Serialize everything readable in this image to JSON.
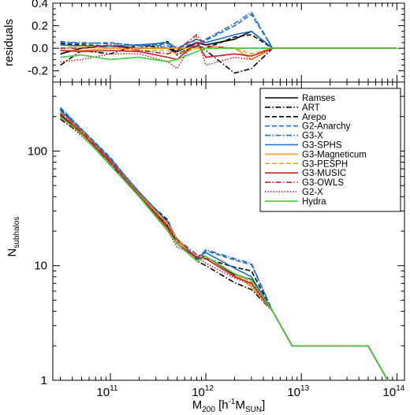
{
  "chart_data": [
    {
      "panel": "residuals",
      "type": "line",
      "ylabel": "residuals",
      "xscale": "log",
      "xlim": [
        25000000000.0,
        120000000000000.0
      ],
      "ylim": [
        -0.3,
        0.4
      ],
      "yticks": [
        -0.2,
        0.0,
        0.2,
        0.4
      ],
      "ytick_labels": [
        "-0.2",
        "0.0",
        "0.2",
        "0.4"
      ],
      "reference_line": 0,
      "x": [
        30000000000.0,
        50000000000.0,
        100000000000.0,
        200000000000.0,
        400000000000.0,
        500000000000.0,
        800000000000.0,
        1000000000000.0,
        2000000000000.0,
        3000000000000.0,
        5000000000000.0,
        10000000000000.0,
        100000000000000.0
      ],
      "series": [
        {
          "name": "Ramses",
          "values": [
            -0.05,
            0.0,
            0.02,
            0.0,
            0.0,
            -0.03,
            0.05,
            0.03,
            0.08,
            0.15,
            0.0,
            0.0,
            0.0
          ]
        },
        {
          "name": "ART",
          "values": [
            -0.15,
            -0.02,
            -0.05,
            0.03,
            0.0,
            -0.05,
            0.02,
            -0.02,
            -0.22,
            -0.18,
            0.0,
            0.0,
            0.0
          ]
        },
        {
          "name": "Arepo",
          "values": [
            0.04,
            0.03,
            0.02,
            0.0,
            0.06,
            -0.06,
            0.02,
            0.0,
            0.1,
            0.12,
            0.0,
            0.0,
            0.0
          ]
        },
        {
          "name": "G2-Anarchy",
          "values": [
            0.06,
            0.04,
            0.05,
            0.02,
            0.04,
            0.0,
            0.05,
            0.07,
            0.2,
            0.3,
            0.0,
            0.0,
            0.0
          ]
        },
        {
          "name": "G3-X",
          "values": [
            0.05,
            0.05,
            0.04,
            0.03,
            0.02,
            -0.02,
            0.02,
            0.08,
            0.22,
            0.32,
            0.0,
            0.0,
            0.0
          ]
        },
        {
          "name": "G3-SPHS",
          "values": [
            0.03,
            0.02,
            0.02,
            0.03,
            0.05,
            0.0,
            0.08,
            0.05,
            0.12,
            0.15,
            0.0,
            0.0,
            0.0
          ]
        },
        {
          "name": "G3-Magneticum",
          "values": [
            -0.02,
            -0.02,
            0.0,
            0.0,
            0.0,
            0.0,
            0.0,
            0.0,
            0.0,
            -0.1,
            0.0,
            0.0,
            0.0
          ]
        },
        {
          "name": "G3-PESPH",
          "values": [
            0.0,
            0.02,
            0.0,
            -0.02,
            -0.02,
            -0.05,
            0.0,
            0.0,
            0.0,
            -0.05,
            0.0,
            0.0,
            0.0
          ]
        },
        {
          "name": "G3-MUSIC",
          "values": [
            -0.02,
            -0.03,
            -0.02,
            -0.03,
            -0.08,
            -0.1,
            0.05,
            -0.08,
            -0.05,
            -0.07,
            0.0,
            0.0,
            0.0
          ]
        },
        {
          "name": "G3-OWLS",
          "values": [
            0.0,
            0.0,
            0.03,
            -0.02,
            -0.05,
            -0.02,
            0.12,
            0.02,
            0.0,
            0.0,
            0.0,
            0.0,
            0.0
          ]
        },
        {
          "name": "G2-X",
          "values": [
            -0.12,
            -0.1,
            -0.05,
            -0.05,
            -0.12,
            -0.18,
            0.1,
            -0.15,
            -0.08,
            -0.1,
            0.0,
            0.0,
            0.0
          ]
        },
        {
          "name": "Hydra",
          "values": [
            -0.08,
            -0.06,
            -0.1,
            -0.08,
            -0.12,
            -0.1,
            -0.03,
            0.0,
            0.0,
            0.0,
            0.0,
            0.0,
            0.0
          ]
        }
      ]
    },
    {
      "panel": "main",
      "type": "line",
      "xlabel": "M",
      "xlabel_sub": "200",
      "xlabel_units": "[h",
      "xlabel_exp": "-1",
      "xlabel_m": "M",
      "xlabel_sun": "SUN",
      "xlabel_close": "]",
      "ylabel": "N",
      "ylabel_sub": "subhalos",
      "xscale": "log",
      "yscale": "log",
      "xlim": [
        25000000000.0,
        120000000000000.0
      ],
      "ylim": [
        1,
        400
      ],
      "xticks": [
        100000000000.0,
        1000000000000.0,
        10000000000000.0,
        100000000000000.0
      ],
      "xtick_base": "10",
      "xtick_exps": [
        "11",
        "12",
        "13",
        "14"
      ],
      "yticks": [
        1,
        10,
        100
      ],
      "ytick_labels": [
        "1",
        "10",
        "100"
      ],
      "legend_position": "top-right",
      "x": [
        30000000000.0,
        50000000000.0,
        100000000000.0,
        200000000000.0,
        400000000000.0,
        500000000000.0,
        800000000000.0,
        1000000000000.0,
        2000000000000.0,
        3000000000000.0,
        5000000000000.0,
        8000000000000.0,
        10000000000000.0,
        20000000000000.0,
        50000000000000.0,
        80000000000000.0
      ],
      "series": [
        {
          "name": "Ramses",
          "color": "#000000",
          "dash": "solid",
          "values": [
            205,
            145,
            80,
            42,
            22,
            17,
            11.5,
            12,
            8.3,
            7.6,
            4,
            2,
            2,
            2,
            2,
            1
          ]
        },
        {
          "name": "ART",
          "color": "#000000",
          "dash": "dashdot",
          "values": [
            190,
            140,
            76,
            43,
            22,
            16.5,
            11,
            10,
            7.1,
            6.2,
            4,
            2,
            2,
            2,
            2,
            1
          ]
        },
        {
          "name": "Arepo",
          "color": "#000000",
          "dash": "dashed",
          "values": [
            230,
            150,
            82,
            42,
            25,
            15.5,
            11.2,
            11.5,
            9.7,
            9.0,
            4,
            2,
            2,
            2,
            2,
            1
          ]
        },
        {
          "name": "G2-Anarchy",
          "color": "#1f6fd0",
          "dash": "dashed",
          "values": [
            240,
            155,
            88,
            43,
            24,
            17,
            11.5,
            13.5,
            11.2,
            10.2,
            4,
            2,
            2,
            2,
            2,
            1
          ]
        },
        {
          "name": "G3-X",
          "color": "#1f6fd0",
          "dash": "dashdot",
          "values": [
            235,
            155,
            86,
            44,
            23,
            16.5,
            11.2,
            13.8,
            11.5,
            10.5,
            4,
            2,
            2,
            2,
            2,
            1
          ]
        },
        {
          "name": "G3-SPHS",
          "color": "#1f6fd0",
          "dash": "solid",
          "values": [
            225,
            152,
            85,
            44,
            24,
            17,
            11.8,
            13,
            9.5,
            8.0,
            4,
            2,
            2,
            2,
            2,
            1
          ]
        },
        {
          "name": "G3-Magneticum",
          "color": "#f0a020",
          "dash": "solid",
          "values": [
            210,
            148,
            81,
            42,
            23,
            17,
            11,
            12,
            8.5,
            6.5,
            4,
            2,
            2,
            2,
            2,
            1
          ]
        },
        {
          "name": "G3-PESPH",
          "color": "#f0a020",
          "dash": "dashed",
          "values": [
            215,
            150,
            82,
            41,
            23,
            16.5,
            11,
            12,
            8.5,
            7.2,
            4,
            2,
            2,
            2,
            2,
            1
          ]
        },
        {
          "name": "G3-MUSIC",
          "color": "#d02020",
          "dash": "solid",
          "values": [
            210,
            143,
            80,
            41,
            21,
            15.5,
            11.8,
            11.5,
            8.0,
            7.0,
            4,
            2,
            2,
            2,
            2,
            1
          ]
        },
        {
          "name": "G3-OWLS",
          "color": "#d02020",
          "dash": "dashdot",
          "values": [
            215,
            148,
            82,
            41,
            22,
            17,
            12.5,
            12,
            8.5,
            7.5,
            4,
            2,
            2,
            2,
            2,
            1
          ]
        },
        {
          "name": "G2-X",
          "color": "#d02020",
          "dash": "dotted",
          "values": [
            195,
            135,
            78,
            40,
            20,
            14.5,
            12.2,
            10.5,
            7.8,
            6.8,
            4,
            2,
            2,
            2,
            2,
            1
          ]
        },
        {
          "name": "Hydra",
          "color": "#40d040",
          "dash": "solid",
          "values": [
            200,
            140,
            75,
            40,
            20,
            15.5,
            11,
            12,
            8.5,
            7.5,
            4,
            2,
            2,
            2,
            2,
            1
          ]
        }
      ]
    }
  ]
}
